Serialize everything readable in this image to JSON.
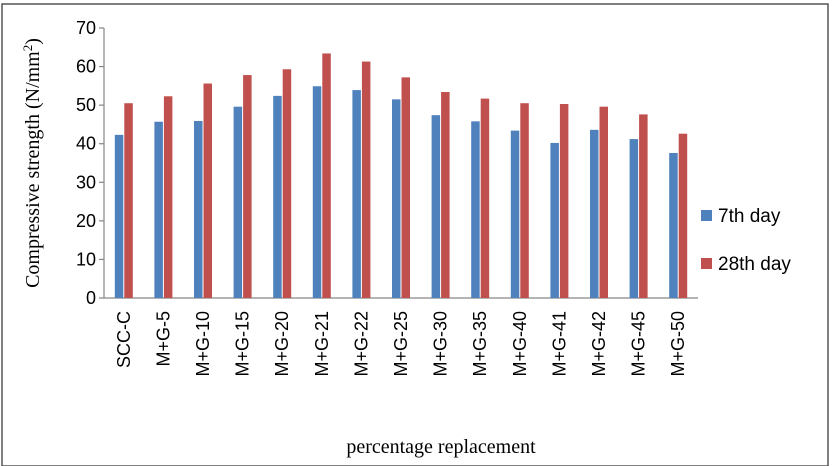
{
  "chart_data": {
    "type": "bar",
    "title": "",
    "xlabel": "percentage replacement",
    "ylabel": "Compressive strength (N/mm",
    "ylabel_sup": "2",
    "ylabel_close": ")",
    "ylim": [
      0,
      70
    ],
    "yticks": [
      0,
      10,
      20,
      30,
      40,
      50,
      60,
      70
    ],
    "grid": false,
    "legend_position": "right",
    "categories": [
      "SCC-C",
      "M+G-5",
      "M+G-10",
      "M+G-15",
      "M+G-20",
      "M+G-21",
      "M+G-22",
      "M+G-25",
      "M+G-30",
      "M+G-35",
      "M+G-40",
      "M+G-41",
      "M+G-42",
      "M+G-45",
      "M+G-50"
    ],
    "series": [
      {
        "name": "7th day",
        "color": "#4F81BD",
        "values": [
          42.3,
          45.7,
          45.9,
          49.6,
          52.4,
          54.9,
          53.9,
          51.5,
          47.4,
          45.8,
          43.4,
          40.2,
          43.6,
          41.2,
          37.6
        ]
      },
      {
        "name": "28th day",
        "color": "#C0504D",
        "values": [
          50.5,
          52.3,
          55.6,
          57.8,
          59.3,
          63.4,
          61.3,
          57.2,
          53.4,
          51.7,
          50.5,
          50.3,
          49.6,
          47.6,
          42.6
        ]
      }
    ]
  }
}
